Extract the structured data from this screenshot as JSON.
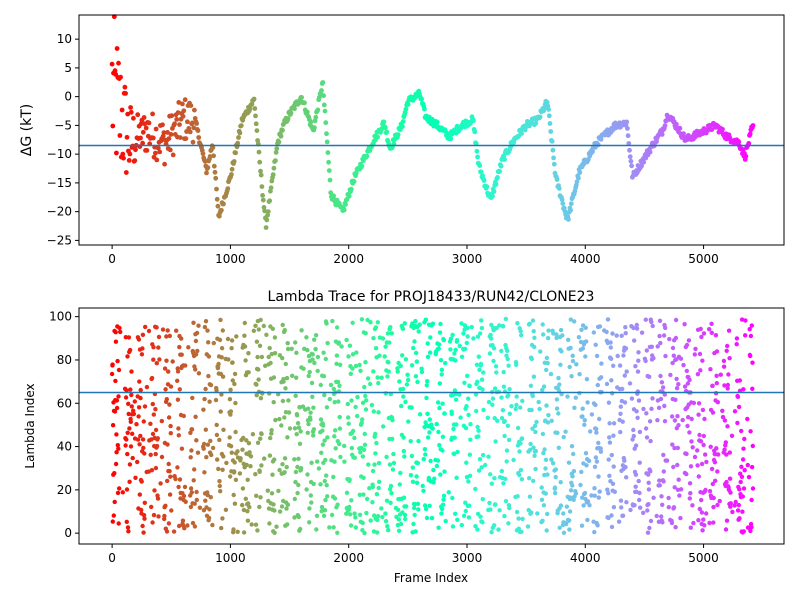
{
  "chart_data": [
    {
      "type": "scatter",
      "title": "",
      "xlabel": "",
      "ylabel": "ΔG (kT)",
      "xlim": [
        -280,
        5680
      ],
      "ylim": [
        -25.8,
        14.2
      ],
      "xticks": [
        0,
        1000,
        2000,
        3000,
        4000,
        5000
      ],
      "yticks": [
        10,
        5,
        0,
        -5,
        -10,
        -15,
        -20,
        -25
      ],
      "hline": -8.5,
      "colormap": "rainbow",
      "n_frames": 5420,
      "trajectory_keypoints": [
        [
          0,
          1
        ],
        [
          150,
          -8
        ],
        [
          300,
          -6
        ],
        [
          450,
          -8
        ],
        [
          600,
          -4
        ],
        [
          700,
          -4
        ],
        [
          800,
          -13
        ],
        [
          850,
          -8
        ],
        [
          900,
          -21
        ],
        [
          1000,
          -14
        ],
        [
          1100,
          -4
        ],
        [
          1200,
          -0.5
        ],
        [
          1250,
          -12
        ],
        [
          1300,
          -22.5
        ],
        [
          1400,
          -8
        ],
        [
          1450,
          -5
        ],
        [
          1500,
          -3
        ],
        [
          1600,
          0
        ],
        [
          1700,
          -6
        ],
        [
          1780,
          2.5
        ],
        [
          1850,
          -17
        ],
        [
          1950,
          -20
        ],
        [
          2050,
          -14
        ],
        [
          2200,
          -8
        ],
        [
          2300,
          -4.5
        ],
        [
          2350,
          -9
        ],
        [
          2450,
          -5
        ],
        [
          2500,
          -0.8
        ],
        [
          2600,
          0.5
        ],
        [
          2650,
          -3.5
        ],
        [
          2750,
          -5
        ],
        [
          2850,
          -7
        ],
        [
          2950,
          -5
        ],
        [
          3050,
          -4
        ],
        [
          3100,
          -12
        ],
        [
          3200,
          -18
        ],
        [
          3300,
          -11
        ],
        [
          3400,
          -7.5
        ],
        [
          3500,
          -5
        ],
        [
          3600,
          -4
        ],
        [
          3680,
          -0.8
        ],
        [
          3750,
          -14
        ],
        [
          3850,
          -21.5
        ],
        [
          3950,
          -13
        ],
        [
          4100,
          -8
        ],
        [
          4250,
          -5
        ],
        [
          4350,
          -4.5
        ],
        [
          4400,
          -14
        ],
        [
          4550,
          -9
        ],
        [
          4650,
          -6
        ],
        [
          4700,
          -3
        ],
        [
          4800,
          -6
        ],
        [
          4850,
          -7.5
        ],
        [
          4950,
          -6.5
        ],
        [
          5100,
          -5
        ],
        [
          5200,
          -7
        ],
        [
          5300,
          -8
        ],
        [
          5350,
          -10.5
        ],
        [
          5410,
          -5.5
        ]
      ]
    },
    {
      "type": "scatter",
      "title": "Lambda Trace for PROJ18433/RUN42/CLONE23",
      "xlabel": "Frame Index",
      "ylabel": "Lambda Index",
      "xlim": [
        -280,
        5680
      ],
      "ylim": [
        -5,
        104
      ],
      "xticks": [
        0,
        1000,
        2000,
        3000,
        4000,
        5000
      ],
      "yticks": [
        100,
        80,
        60,
        40,
        20,
        0
      ],
      "hline": 65,
      "colormap": "rainbow",
      "n_frames": 5420,
      "value_range": [
        0,
        99
      ]
    }
  ]
}
